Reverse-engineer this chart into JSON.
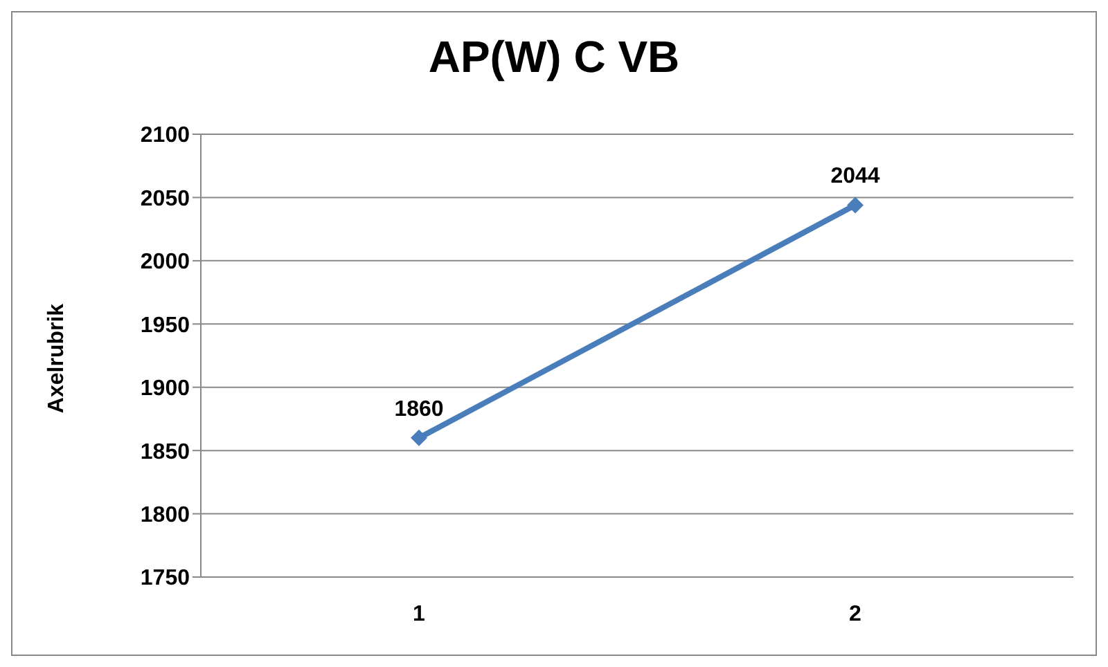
{
  "chart_data": {
    "type": "line",
    "title": "AP(W) C VB",
    "ylabel": "Axelrubrik",
    "categories": [
      "1",
      "2"
    ],
    "series": [
      {
        "color": "#4a7ebb",
        "values": [
          1860,
          2044
        ]
      }
    ],
    "ylim": [
      1750,
      2100
    ],
    "yticks": [
      1750,
      1800,
      1850,
      1900,
      1950,
      2000,
      2050,
      2100
    ],
    "grid": "y",
    "marker": "diamond",
    "line_style": "solid",
    "data_labels": true,
    "legend": false
  }
}
